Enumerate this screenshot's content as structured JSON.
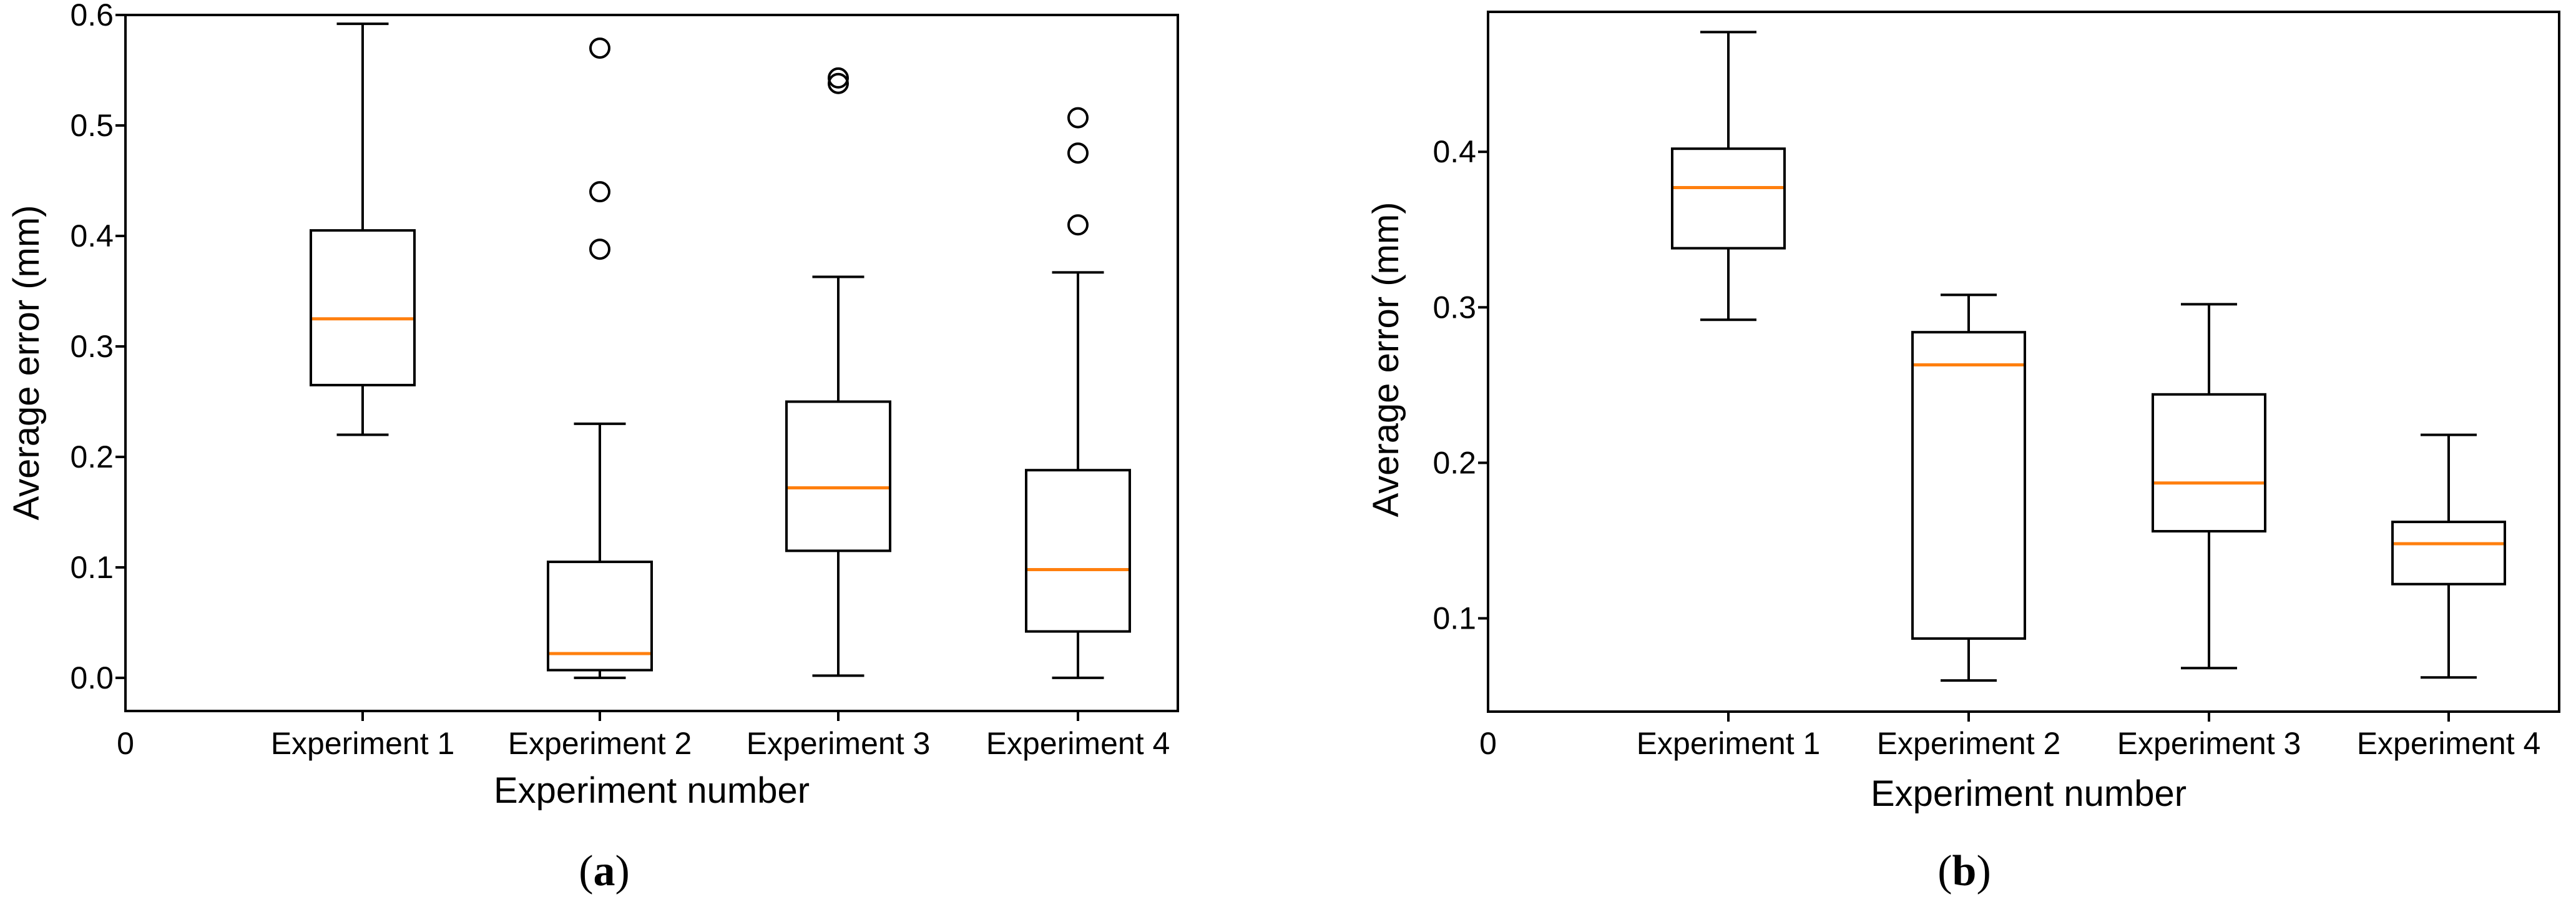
{
  "colors": {
    "median": "#ff7f0e",
    "box": "#000000",
    "background": "#ffffff"
  },
  "chart_data": [
    {
      "type": "boxplot",
      "panel_label": "a",
      "xlabel": "Experiment number",
      "ylabel": "Average  error (mm)",
      "x_origin_label": "0",
      "categories": [
        "Experiment 1",
        "Experiment 2",
        "Experiment 3",
        "Experiment 4"
      ],
      "ylim": [
        -0.03,
        0.6
      ],
      "yticks": [
        0.0,
        0.1,
        0.2,
        0.3,
        0.4,
        0.5,
        0.6
      ],
      "ytick_labels": [
        "0.0",
        "0.1",
        "0.2",
        "0.3",
        "0.4",
        "0.5",
        "0.6"
      ],
      "boxes": [
        {
          "name": "Experiment 1",
          "whislo": 0.22,
          "q1": 0.265,
          "med": 0.325,
          "q3": 0.405,
          "whishi": 0.592,
          "fliers": []
        },
        {
          "name": "Experiment 2",
          "whislo": 0.0,
          "q1": 0.007,
          "med": 0.022,
          "q3": 0.105,
          "whishi": 0.23,
          "fliers": [
            0.388,
            0.44,
            0.57
          ]
        },
        {
          "name": "Experiment 3",
          "whislo": 0.002,
          "q1": 0.115,
          "med": 0.172,
          "q3": 0.25,
          "whishi": 0.363,
          "fliers": [
            0.538,
            0.543
          ]
        },
        {
          "name": "Experiment 4",
          "whislo": 0.0,
          "q1": 0.042,
          "med": 0.098,
          "q3": 0.188,
          "whishi": 0.367,
          "fliers": [
            0.41,
            0.475,
            0.507
          ]
        }
      ]
    },
    {
      "type": "boxplot",
      "panel_label": "b",
      "xlabel": "Experiment number",
      "ylabel": "Average  error (mm)",
      "x_origin_label": "0",
      "categories": [
        "Experiment 1",
        "Experiment 2",
        "Experiment 3",
        "Experiment 4"
      ],
      "ylim": [
        0.04,
        0.49
      ],
      "yticks": [
        0.1,
        0.2,
        0.3,
        0.4
      ],
      "ytick_labels": [
        "0.1",
        "0.2",
        "0.3",
        "0.4"
      ],
      "boxes": [
        {
          "name": "Experiment 1",
          "whislo": 0.292,
          "q1": 0.338,
          "med": 0.377,
          "q3": 0.402,
          "whishi": 0.477,
          "fliers": []
        },
        {
          "name": "Experiment 2",
          "whislo": 0.06,
          "q1": 0.087,
          "med": 0.263,
          "q3": 0.284,
          "whishi": 0.308,
          "fliers": []
        },
        {
          "name": "Experiment 3",
          "whislo": 0.068,
          "q1": 0.156,
          "med": 0.187,
          "q3": 0.244,
          "whishi": 0.302,
          "fliers": []
        },
        {
          "name": "Experiment 4",
          "whislo": 0.062,
          "q1": 0.122,
          "med": 0.148,
          "q3": 0.162,
          "whishi": 0.218,
          "fliers": []
        }
      ]
    }
  ]
}
